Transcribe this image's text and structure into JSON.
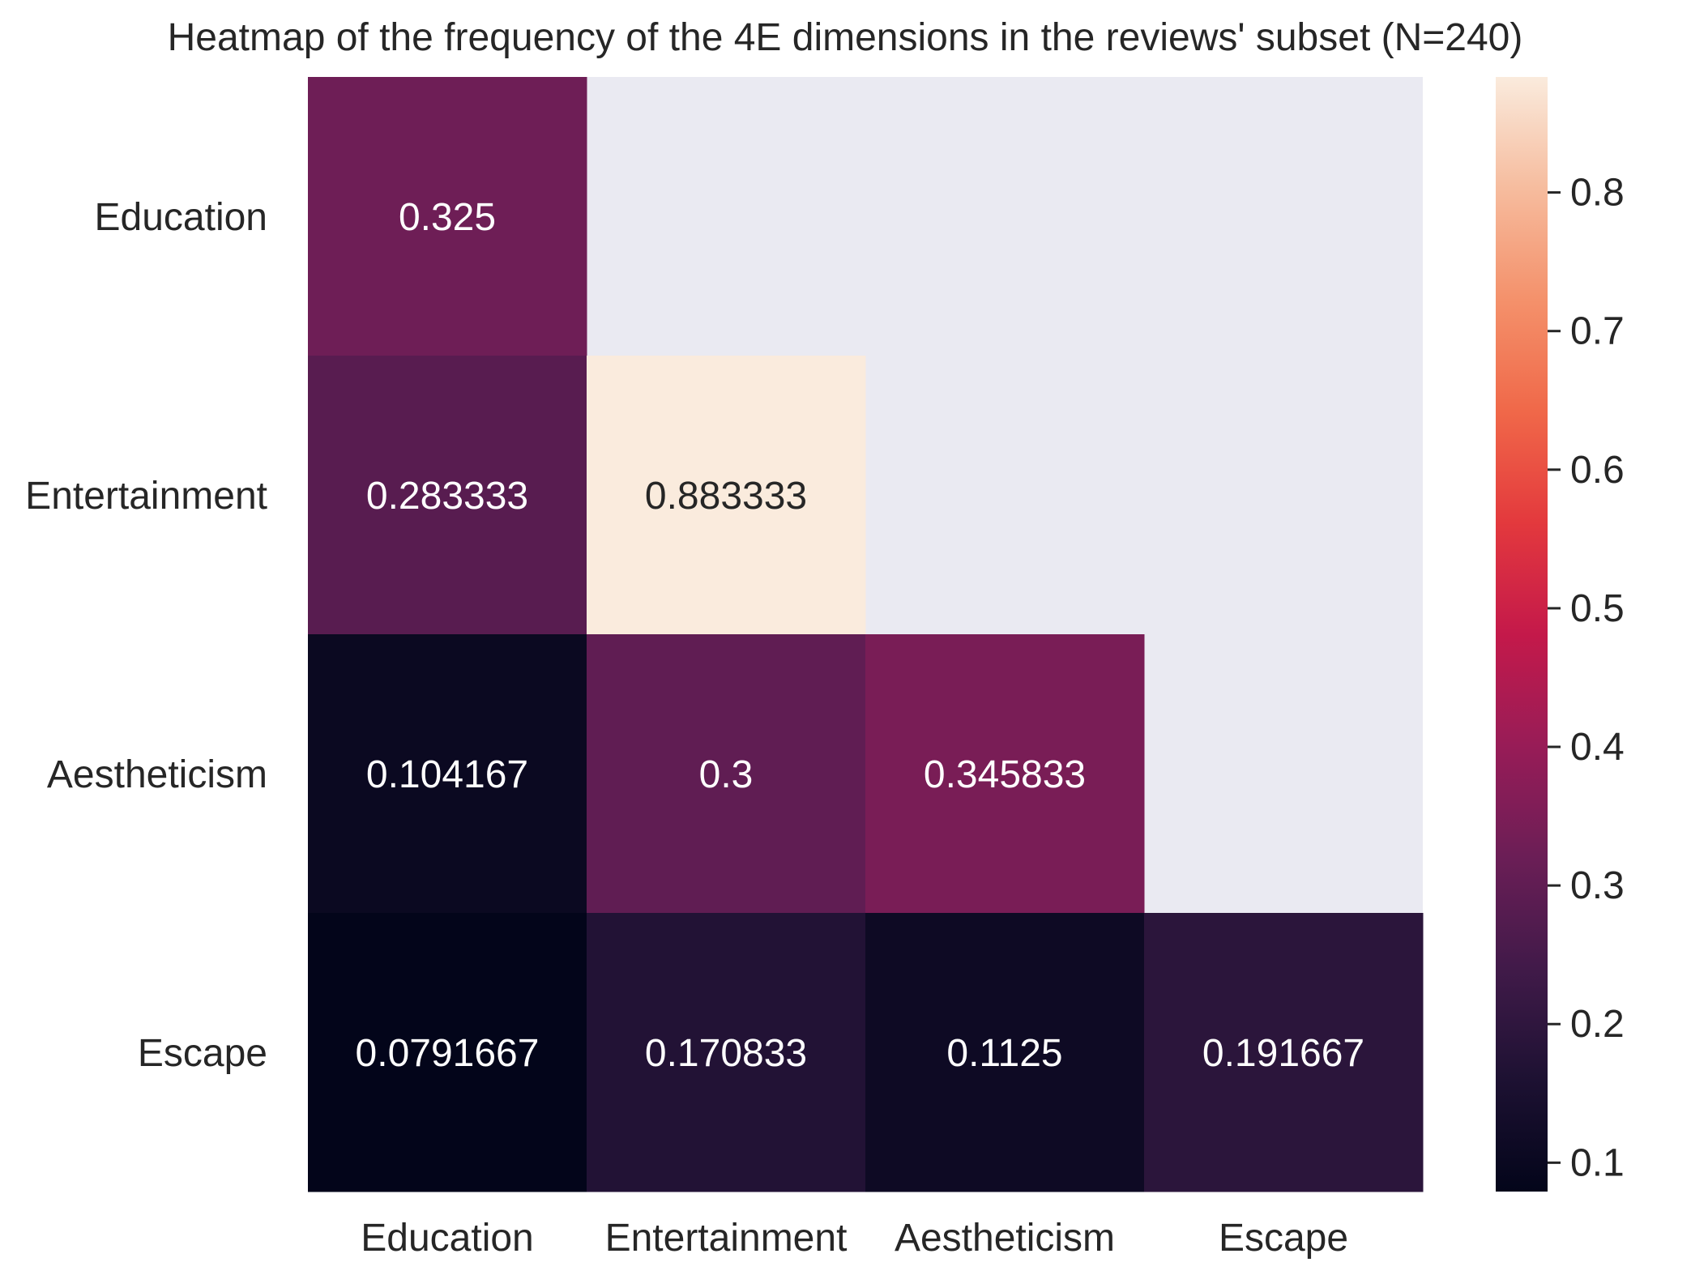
{
  "chart_data": {
    "type": "heatmap",
    "title": "Heatmap of the frequency of the 4E dimensions in the reviews' subset (N=240)",
    "rows": [
      "Education",
      "Entertainment",
      "Aestheticism",
      "Escape"
    ],
    "columns": [
      "Education",
      "Entertainment",
      "Aestheticism",
      "Escape"
    ],
    "values": [
      [
        0.325,
        null,
        null,
        null
      ],
      [
        0.283333,
        0.883333,
        null,
        null
      ],
      [
        0.104167,
        0.3,
        0.345833,
        null
      ],
      [
        0.0791667,
        0.170833,
        0.1125,
        0.191667
      ]
    ],
    "cell_labels": [
      [
        "0.325",
        "",
        "",
        ""
      ],
      [
        "0.283333",
        "0.883333",
        "",
        ""
      ],
      [
        "0.104167",
        "0.3",
        "0.345833",
        ""
      ],
      [
        "0.0791667",
        "0.170833",
        "0.1125",
        "0.191667"
      ]
    ],
    "masked": "upper-triangle",
    "colormap": "rocket",
    "mask_color": "#eaeaf2",
    "colorbar": {
      "min": 0.0791667,
      "max": 0.883333,
      "ticks": [
        0.1,
        0.2,
        0.3,
        0.4,
        0.5,
        0.6,
        0.7,
        0.8
      ],
      "tick_labels": [
        "0.1",
        "0.2",
        "0.3",
        "0.4",
        "0.5",
        "0.6",
        "0.7",
        "0.8"
      ],
      "position": "right"
    },
    "xlabel": "",
    "ylabel": ""
  }
}
